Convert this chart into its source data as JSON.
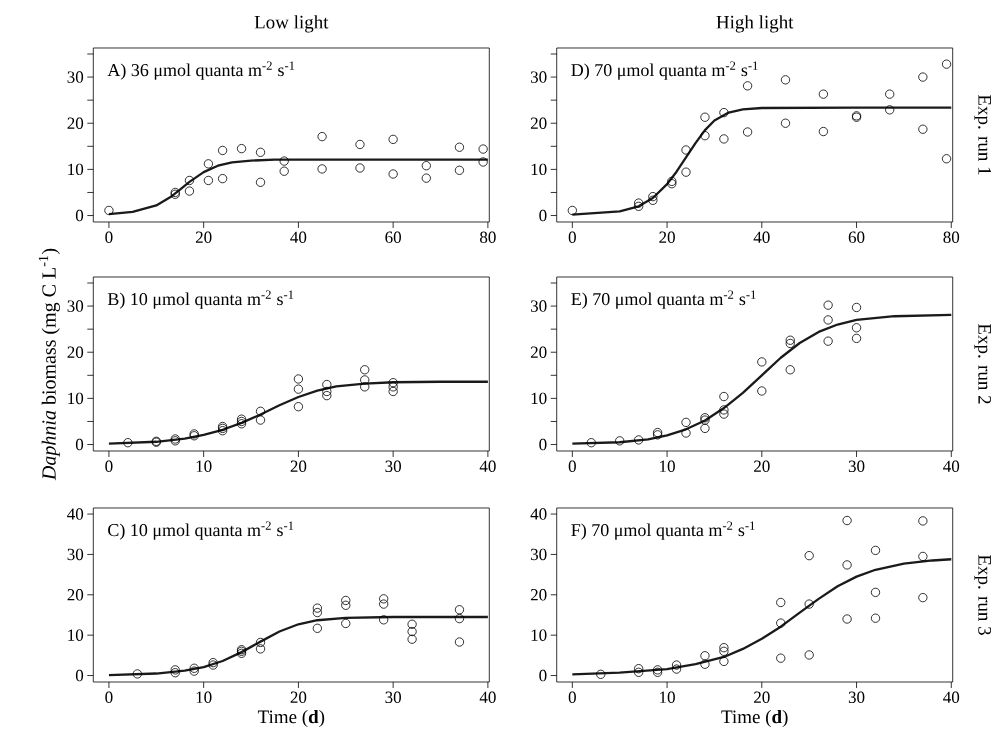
{
  "chart_data": [
    {
      "type": "scatter",
      "title": "Low light",
      "annotations": [
        "A) 36 μmol quanta m$^{-2}$ s$^{-1}$"
      ],
      "xlim": [
        -3.3,
        80.3
      ],
      "xticks": [
        0,
        20,
        40,
        60,
        80
      ],
      "ylim": [
        -1.4,
        36.3
      ],
      "yticks": [
        0,
        {
          "value": 5,
          "label": null
        },
        10,
        {
          "value": 15,
          "label": null
        },
        20,
        {
          "value": 25,
          "label": null
        },
        30,
        {
          "value": 35,
          "label": null
        }
      ],
      "series": [
        {
          "marker": "circle",
          "color": "#000000",
          "x": [
            0,
            14,
            14,
            17,
            17,
            21,
            21,
            24,
            24,
            28,
            32,
            32,
            37,
            37,
            45,
            45,
            53,
            53,
            60,
            60,
            67,
            67,
            74,
            74,
            79,
            79
          ],
          "values": [
            1.1,
            4.6,
            5.0,
            7.6,
            5.3,
            11.2,
            7.6,
            14.1,
            8.0,
            14.5,
            13.7,
            7.2,
            11.8,
            9.6,
            17.1,
            10.1,
            15.4,
            10.3,
            16.5,
            9.0,
            10.8,
            8.1,
            14.8,
            9.8,
            14.4,
            11.6
          ]
        },
        {
          "type": "line",
          "color": "#1a1a1a",
          "x": [
            0,
            5,
            10,
            13,
            15,
            17,
            20,
            23,
            26,
            30,
            35,
            40,
            60,
            80
          ],
          "values": [
            0.3,
            0.8,
            2.2,
            4.0,
            5.6,
            7.3,
            9.4,
            10.8,
            11.5,
            11.9,
            12.1,
            12.1,
            12.1,
            12.1
          ]
        }
      ]
    },
    {
      "type": "scatter",
      "title": "High light",
      "y2label": "Exp. run 1",
      "annotations": [
        "D) 70 μmol quanta m$^{-2}$ s$^{-1}$"
      ],
      "xlim": [
        -3.3,
        80.3
      ],
      "xticks": [
        0,
        20,
        40,
        60,
        80
      ],
      "ylim": [
        -1.4,
        36.3
      ],
      "yticks": [
        0,
        {
          "value": 5,
          "label": null
        },
        10,
        {
          "value": 15,
          "label": null
        },
        20,
        {
          "value": 25,
          "label": null
        },
        30,
        {
          "value": 35,
          "label": null
        }
      ],
      "series": [
        {
          "marker": "circle",
          "color": "#000000",
          "x": [
            0,
            14,
            14,
            17,
            17,
            21,
            21,
            24,
            24,
            28,
            28,
            32,
            32,
            37,
            37,
            45,
            45,
            53,
            53,
            60,
            60,
            67,
            67,
            74,
            74,
            79,
            79
          ],
          "values": [
            1.1,
            2.7,
            2.0,
            4.1,
            3.3,
            7.4,
            6.9,
            14.2,
            9.4,
            21.3,
            17.3,
            22.3,
            16.6,
            28.1,
            18.1,
            29.4,
            20.0,
            26.3,
            18.2,
            21.6,
            21.3,
            26.3,
            22.9,
            30.0,
            18.7,
            32.8,
            12.3
          ]
        },
        {
          "type": "line",
          "color": "#1a1a1a",
          "x": [
            0,
            10,
            14,
            17,
            20,
            22,
            24,
            26,
            28,
            30,
            33,
            36,
            40,
            60,
            80
          ],
          "values": [
            0.2,
            0.9,
            2.0,
            3.8,
            6.8,
            9.5,
            12.6,
            15.7,
            18.5,
            20.6,
            22.3,
            23.0,
            23.3,
            23.4,
            23.4
          ]
        }
      ]
    },
    {
      "type": "scatter",
      "ylabel": "*Daphnia* biomass (mg C L$^{-1}$)",
      "annotations": [
        "B) 10 μmol quanta m$^{-2}$ s$^{-1}$"
      ],
      "xlim": [
        -1.65,
        40.15
      ],
      "xticks": [
        0,
        10,
        20,
        30,
        40
      ],
      "ylim": [
        -1.4,
        36.3
      ],
      "yticks": [
        0,
        {
          "value": 5,
          "label": null
        },
        10,
        {
          "value": 15,
          "label": null
        },
        20,
        {
          "value": 25,
          "label": null
        },
        30,
        {
          "value": 35,
          "label": null
        }
      ],
      "series": [
        {
          "marker": "circle",
          "color": "#000000",
          "x": [
            2,
            5,
            5,
            7,
            7,
            9,
            9,
            12,
            12,
            12,
            14,
            14,
            14,
            16,
            16,
            20,
            20,
            20,
            23,
            23,
            23,
            27,
            27,
            27,
            30,
            30,
            30
          ],
          "values": [
            0.4,
            0.7,
            0.5,
            1.2,
            0.8,
            2.3,
            1.9,
            3.9,
            3.0,
            3.5,
            5.5,
            4.5,
            5.0,
            7.2,
            5.3,
            14.2,
            12.0,
            8.2,
            13.0,
            11.5,
            10.6,
            16.2,
            14.0,
            12.5,
            13.4,
            12.5,
            11.5
          ]
        },
        {
          "type": "line",
          "color": "#1a1a1a",
          "x": [
            0,
            5,
            8,
            10,
            12,
            14,
            16,
            18,
            20,
            22,
            24,
            27,
            30,
            35,
            40
          ],
          "values": [
            0.2,
            0.6,
            1.3,
            2.1,
            3.2,
            4.7,
            6.5,
            8.5,
            10.3,
            11.7,
            12.6,
            13.2,
            13.5,
            13.6,
            13.6
          ]
        }
      ]
    },
    {
      "type": "scatter",
      "y2label": "Exp. run 2",
      "annotations": [
        "E) 70 μmol quanta m$^{-2}$ s$^{-1}$"
      ],
      "xlim": [
        -1.65,
        40.15
      ],
      "xticks": [
        0,
        10,
        20,
        30,
        40
      ],
      "ylim": [
        -1.4,
        36.3
      ],
      "yticks": [
        0,
        {
          "value": 5,
          "label": null
        },
        10,
        {
          "value": 15,
          "label": null
        },
        20,
        {
          "value": 25,
          "label": null
        },
        30,
        {
          "value": 35,
          "label": null
        }
      ],
      "series": [
        {
          "marker": "circle",
          "color": "#000000",
          "x": [
            2,
            5,
            7,
            9,
            9,
            12,
            12,
            14,
            14,
            14,
            16,
            16,
            16,
            20,
            20,
            23,
            23,
            23,
            27,
            27,
            27,
            30,
            30,
            30
          ],
          "values": [
            0.4,
            0.8,
            1.0,
            2.6,
            2.1,
            4.8,
            2.5,
            5.8,
            3.5,
            5.3,
            10.4,
            7.5,
            6.6,
            17.9,
            11.6,
            22.6,
            21.9,
            16.2,
            30.2,
            27.0,
            22.4,
            29.7,
            25.3,
            23.0
          ]
        },
        {
          "type": "line",
          "color": "#1a1a1a",
          "x": [
            0,
            5,
            8,
            10,
            12,
            14,
            16,
            18,
            20,
            22,
            24,
            26,
            28,
            30,
            34,
            40
          ],
          "values": [
            0.2,
            0.5,
            1.1,
            2.0,
            3.3,
            5.2,
            7.9,
            11.2,
            15.0,
            18.8,
            22.0,
            24.4,
            26.0,
            27.0,
            27.8,
            28.1
          ]
        }
      ]
    },
    {
      "type": "scatter",
      "xlabel": "Time (**d**)",
      "annotations": [
        "C) 10 μmol quanta m$^{-2}$ s$^{-1}$"
      ],
      "xlim": [
        -1.65,
        40.15
      ],
      "xticks": [
        0,
        10,
        20,
        30,
        40
      ],
      "ylim": [
        -1.6,
        41.5
      ],
      "yticks": [
        0,
        10,
        20,
        30,
        40
      ],
      "series": [
        {
          "marker": "circle",
          "color": "#000000",
          "x": [
            3,
            7,
            7,
            9,
            9,
            11,
            11,
            14,
            14,
            14,
            16,
            16,
            22,
            22,
            22,
            25,
            25,
            25,
            29,
            29,
            29,
            32,
            32,
            32,
            37,
            37,
            37
          ],
          "values": [
            0.4,
            1.4,
            0.7,
            1.8,
            1.1,
            3.2,
            2.6,
            6.4,
            5.5,
            6.0,
            8.2,
            6.6,
            16.7,
            15.6,
            11.7,
            18.6,
            17.4,
            12.9,
            19.0,
            17.7,
            13.8,
            12.7,
            10.9,
            9.0,
            16.3,
            14.1,
            8.3
          ]
        },
        {
          "type": "line",
          "color": "#1a1a1a",
          "x": [
            0,
            5,
            8,
            10,
            12,
            14,
            16,
            18,
            20,
            22,
            25,
            30,
            40
          ],
          "values": [
            0.1,
            0.5,
            1.2,
            2.1,
            3.6,
            5.8,
            8.4,
            10.9,
            12.7,
            13.7,
            14.3,
            14.5,
            14.5
          ]
        }
      ]
    },
    {
      "type": "scatter",
      "xlabel": "Time (**d**)",
      "y2label": "Exp. run 3",
      "annotations": [
        "F) 70 μmol quanta m$^{-2}$ s$^{-1}$"
      ],
      "xlim": [
        -1.65,
        40.15
      ],
      "xticks": [
        0,
        10,
        20,
        30,
        40
      ],
      "ylim": [
        -1.6,
        41.5
      ],
      "yticks": [
        0,
        10,
        20,
        30,
        40
      ],
      "series": [
        {
          "marker": "circle",
          "color": "#000000",
          "x": [
            3,
            7,
            7,
            9,
            9,
            11,
            11,
            14,
            14,
            16,
            16,
            16,
            22,
            22,
            22,
            25,
            25,
            25,
            29,
            29,
            29,
            32,
            32,
            32,
            37,
            37,
            37
          ],
          "values": [
            0.3,
            1.7,
            0.8,
            1.4,
            0.8,
            2.6,
            1.6,
            4.9,
            2.8,
            6.9,
            6.0,
            3.5,
            18.1,
            13.0,
            4.3,
            29.7,
            17.7,
            5.1,
            38.4,
            27.4,
            14.0,
            31.0,
            20.6,
            14.2,
            38.3,
            29.5,
            19.3
          ]
        },
        {
          "type": "line",
          "color": "#1a1a1a",
          "x": [
            0,
            5,
            10,
            13,
            16,
            18,
            20,
            22,
            24,
            26,
            28,
            30,
            32,
            35,
            38,
            40
          ],
          "values": [
            0.3,
            0.7,
            1.6,
            2.8,
            4.6,
            6.6,
            9.1,
            12.1,
            15.6,
            19.0,
            22.1,
            24.5,
            26.2,
            27.7,
            28.5,
            28.8
          ]
        }
      ]
    }
  ]
}
